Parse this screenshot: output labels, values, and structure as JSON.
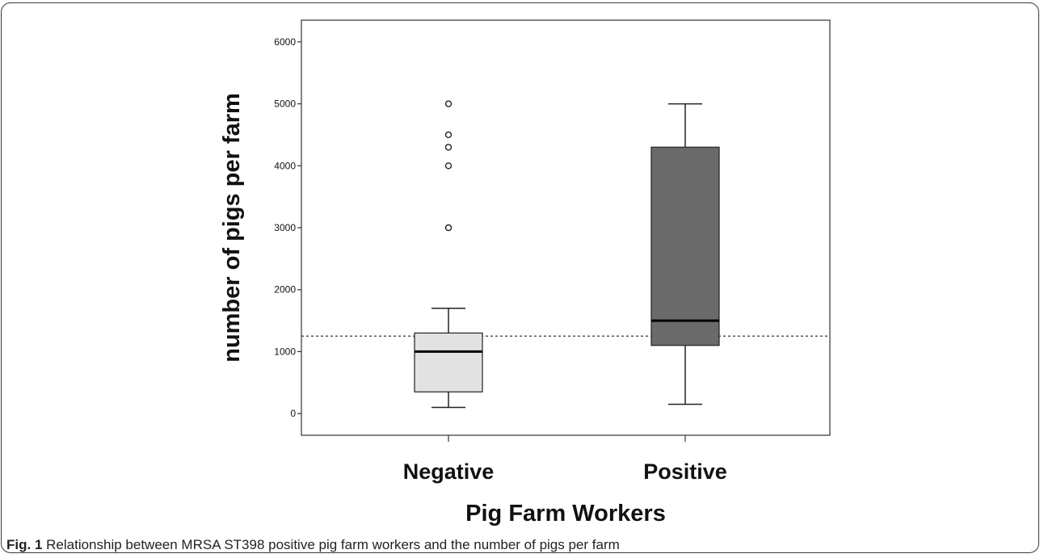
{
  "caption": {
    "label": "Fig. 1",
    "text": "Relationship between MRSA ST398 positive pig farm workers and the number of pigs per farm"
  },
  "chart_data": {
    "type": "boxplot",
    "xlabel": "Pig Farm Workers",
    "ylabel": "number of pigs per farm",
    "ylim": [
      -350,
      6350
    ],
    "yticks": [
      0,
      1000,
      2000,
      3000,
      4000,
      5000,
      6000
    ],
    "grid": false,
    "reference_line": {
      "y": 1250,
      "style": "dotted"
    },
    "categories": [
      "Negative",
      "Positive"
    ],
    "boxes": [
      {
        "category": "Negative",
        "whisker_low": 100,
        "q1": 350,
        "median": 1000,
        "q3": 1300,
        "whisker_high": 1700,
        "outliers": [
          3000,
          4000,
          4300,
          4500,
          5000
        ],
        "fill": "#e2e2e2"
      },
      {
        "category": "Positive",
        "whisker_low": 150,
        "q1": 1100,
        "median": 1500,
        "q3": 4300,
        "whisker_high": 5000,
        "outliers": [],
        "fill": "#6a6a6a"
      }
    ]
  }
}
